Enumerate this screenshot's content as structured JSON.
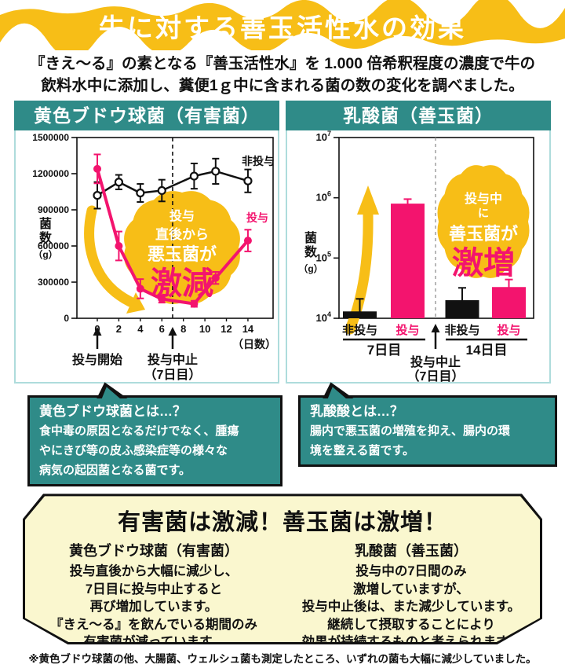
{
  "banner": {
    "title": "牛に対する善玉活性水の効果"
  },
  "intro": {
    "line1": "『きえ〜る』の素となる『善玉活性水』を 1.000 倍希釈程度の濃度で牛の",
    "line2": "飲料水中に添加し、糞便1ｇ中に含まれる菌の数の変化を調べました。"
  },
  "colors": {
    "teal": "#2F8B88",
    "pink": "#F3146E",
    "yellow": "#F7BE17",
    "cream": "#FAF7CF",
    "ink": "#111111",
    "panel_border": "#AEDCDC"
  },
  "chart_data": [
    {
      "type": "line",
      "title": "黄色ブドウ球菌（有害菌）",
      "ylabel": "菌数（g）",
      "xlabel": "（日数）",
      "ylim": [
        0,
        1500000
      ],
      "yticks": [
        0,
        300000,
        600000,
        900000,
        1200000,
        1500000
      ],
      "xticks": [
        0,
        2,
        4,
        6,
        8,
        10,
        12,
        14
      ],
      "grid": false,
      "x": [
        0,
        2,
        4,
        6,
        9,
        11,
        14
      ],
      "series": [
        {
          "name": "非投与",
          "color": "#111111",
          "marker": "open",
          "values": [
            1020000,
            1130000,
            1040000,
            1060000,
            1180000,
            1220000,
            1140000
          ],
          "errors": [
            110000,
            60000,
            75000,
            90000,
            105000,
            105000,
            95000
          ]
        },
        {
          "name": "投与",
          "color": "#F3146E",
          "marker": "filled",
          "values": [
            1240000,
            600000,
            245000,
            160000,
            120000,
            335000,
            645000
          ],
          "errors": [
            120000,
            120000,
            80000,
            30000,
            25000,
            50000,
            90000
          ]
        }
      ],
      "dashed_day": 7,
      "annotations": {
        "start_label": "投与開始",
        "stop_label_1": "投与中止",
        "stop_label_2": "（7日目）",
        "blob_lines": [
          "投与",
          "直後から",
          "悪玉菌が",
          "激減"
        ]
      }
    },
    {
      "type": "bar",
      "title": "乳酸菌（善玉菌）",
      "ylabel": "菌数（g）",
      "yscale": "log",
      "ylim": [
        10000,
        10000000
      ],
      "ytick_exponents": [
        4,
        5,
        6,
        7
      ],
      "groups": [
        {
          "label": "7日目",
          "bars": [
            {
              "name": "非投与",
              "value": 13000,
              "error_top": 21000,
              "color": "#111111"
            },
            {
              "name": "投与",
              "value": 800000,
              "error_top": 950000,
              "color": "#F3146E"
            }
          ]
        },
        {
          "label": "14日目",
          "bars": [
            {
              "name": "非投与",
              "value": 20000,
              "error_top": 32000,
              "color": "#111111"
            },
            {
              "name": "投与",
              "value": 33000,
              "error_top": 44000,
              "color": "#F3146E"
            }
          ]
        }
      ],
      "annotations": {
        "stop_label_1": "投与中止",
        "stop_label_2": "（7日目）",
        "blob_lines": [
          "投与中",
          "に",
          "善玉菌が",
          "激増"
        ]
      }
    }
  ],
  "callouts": [
    {
      "title": "黄色ブドウ球菌とは…？",
      "lines": [
        "食中毒の原因となるだけでなく、腫瘍",
        "やにきび等の皮ふ感染症等の様々な",
        "病気の起因菌となる菌です。"
      ]
    },
    {
      "title": "乳酸酸とは…？",
      "lines": [
        "腸内で悪玉菌の増殖を抑え、腸内の環",
        "境を整える菌です。"
      ]
    }
  ],
  "summary": {
    "title": "有害菌は激減！善玉菌は激増！",
    "columns": [
      {
        "heading": "黄色ブドウ球菌（有害菌）",
        "lines": [
          "投与直後から大幅に減少し、",
          "7日目に投与中止すると",
          "再び増加しています。",
          "『きえ〜る』を飲んでいる期間のみ",
          "有害菌が減っています。"
        ]
      },
      {
        "heading": "乳酸菌（善玉菌）",
        "lines": [
          "投与中の7日間のみ",
          "激増していますが、",
          "投与中止後は、また減少しています。",
          "継続して摂取することにより",
          "効果が持続するものと考えられます。"
        ]
      }
    ]
  },
  "footnote": "※黄色ブドウ球菌の他、大腸菌、ウェルシュ菌も測定したところ、いずれの菌も大幅に減少していました。"
}
